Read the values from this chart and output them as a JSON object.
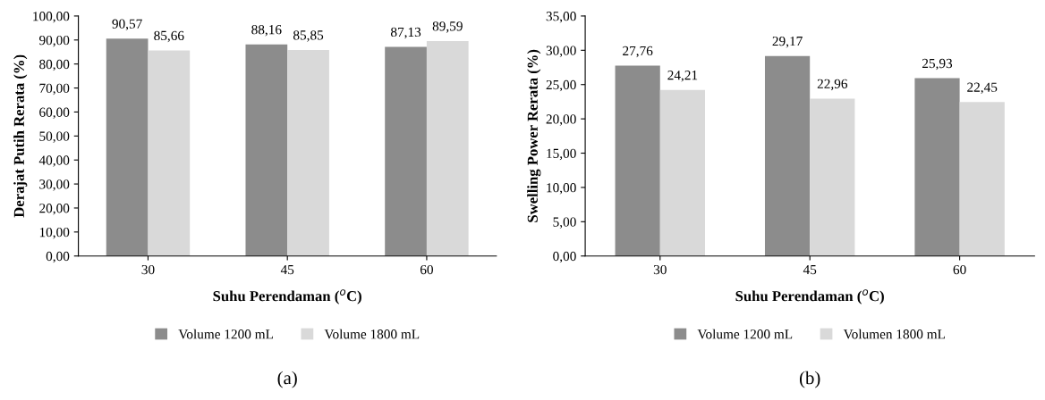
{
  "chart_data": [
    {
      "type": "bar",
      "categories": [
        "30",
        "45",
        "60"
      ],
      "xlabel": "Suhu Perendaman ($^{o}$C)",
      "ylabel": "Derajat Putih Rerata (%)",
      "series": [
        {
          "name": "Volume 1200 mL",
          "color": "#8c8c8c",
          "values": [
            90.57,
            88.16,
            87.13
          ],
          "value_labels": [
            "90,57",
            "88,16",
            "87,13"
          ]
        },
        {
          "name": "Volume 1800 mL",
          "color": "#d9d9d9",
          "values": [
            85.66,
            85.85,
            89.59
          ],
          "value_labels": [
            "85,66",
            "85,85",
            "89,59"
          ]
        }
      ],
      "ylim": [
        0,
        100
      ],
      "yticks": [
        {
          "value": 0,
          "label": "0,00"
        },
        {
          "value": 10,
          "label": "10,00"
        },
        {
          "value": 20,
          "label": "20,00"
        },
        {
          "value": 30,
          "label": "30,00"
        },
        {
          "value": 40,
          "label": "40,00"
        },
        {
          "value": 50,
          "label": "50,00"
        },
        {
          "value": 60,
          "label": "60,00"
        },
        {
          "value": 70,
          "label": "70,00"
        },
        {
          "value": 80,
          "label": "80,00"
        },
        {
          "value": 90,
          "label": "90,00"
        },
        {
          "value": 100,
          "label": "100,00"
        }
      ],
      "legend": "bottom",
      "grid": false,
      "annotations": [
        "(a)"
      ]
    },
    {
      "type": "bar",
      "categories": [
        "30",
        "45",
        "60"
      ],
      "xlabel": "Suhu Perendaman ($^{o}$C)",
      "ylabel": "Swelling Power Rerata (%)",
      "series": [
        {
          "name": "Volume 1200 mL",
          "color": "#8c8c8c",
          "values": [
            27.76,
            29.17,
            25.93
          ],
          "value_labels": [
            "27,76",
            "29,17",
            "25,93"
          ]
        },
        {
          "name": "Volumen 1800 mL",
          "color": "#d9d9d9",
          "values": [
            24.21,
            22.96,
            22.45
          ],
          "value_labels": [
            "24,21",
            "22,96",
            "22,45"
          ]
        }
      ],
      "ylim": [
        0,
        35
      ],
      "yticks": [
        {
          "value": 0,
          "label": "0,00"
        },
        {
          "value": 5,
          "label": "5,00"
        },
        {
          "value": 10,
          "label": "10,00"
        },
        {
          "value": 15,
          "label": "15,00"
        },
        {
          "value": 20,
          "label": "20,00"
        },
        {
          "value": 25,
          "label": "25,00"
        },
        {
          "value": 30,
          "label": "30,00"
        },
        {
          "value": 35,
          "label": "35,00"
        }
      ],
      "legend": "bottom",
      "grid": false,
      "annotations": [
        "(b)"
      ]
    }
  ]
}
